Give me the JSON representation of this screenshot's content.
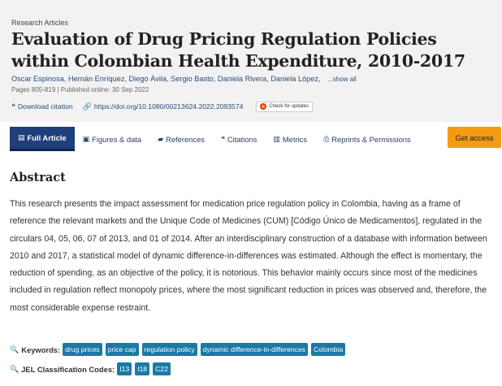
{
  "article": {
    "section": "Research Articles",
    "title": "Evaluation of Drug Pricing Regulation Policies within Colombian Health Expenditure, 2010-2017",
    "authors": [
      "Oscar Espinosa",
      "Hernán Enríquez",
      "Diego Ávila",
      "Sergio Basto",
      "Daniela Rivera",
      "Daniela López"
    ],
    "show_all": "...show all",
    "pubinfo": "Pages 805-819 | Published online: 30 Sep 2022",
    "download_citation": "Download citation",
    "doi": "https://doi.org/10.1080/00213624.2022.2093574",
    "check_updates": "Check for updates"
  },
  "tabs": [
    {
      "label": "Full Article",
      "icon": "document-icon",
      "active": true
    },
    {
      "label": "Figures & data",
      "icon": "image-icon"
    },
    {
      "label": "References",
      "icon": "book-icon"
    },
    {
      "label": "Citations",
      "icon": "quote-icon"
    },
    {
      "label": "Metrics",
      "icon": "bar-chart-icon"
    },
    {
      "label": "Reprints & Permissions",
      "icon": "printer-icon"
    },
    {
      "label": "Get access",
      "accent": "#f39c12"
    }
  ],
  "abstract": {
    "heading": "Abstract",
    "text": "This research presents the impact assessment for medication price regulation policy in Colombia, having as a frame of reference the relevant markets and the Unique Code of Medicines (CUM) [Código Único de Medicamentos], regulated in the circulars 04, 05, 06, 07 of 2013, and 01 of 2014. After an interdisciplinary construction of a database with information between 2010 and 2017, a statistical model of dynamic difference-in-differences was estimated. Although the effect is momentary, the reduction of spending, as an objective of the policy, it is notorious. This behavior mainly occurs since most of the medicines included in regulation reflect monopoly prices, where the most significant reduction in prices was observed and, therefore, the most considerable expense restraint."
  },
  "keywords": {
    "label": "Keywords:",
    "items": [
      "drug prices",
      "price cap",
      "regulation policy",
      "dynamic difference-in-differences",
      "Colombia"
    ]
  },
  "jel": {
    "label": "JEL Classification Codes:",
    "items": [
      "I13",
      "I18",
      "C22"
    ]
  },
  "colors": {
    "primary": "#1f3f7a",
    "accent": "#f39c12",
    "chip": "#1a7aa6"
  }
}
